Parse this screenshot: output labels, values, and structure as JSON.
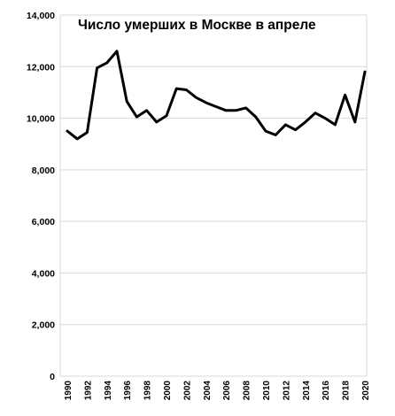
{
  "chart_data": {
    "type": "line",
    "title": "Число умерших в Москве в апреле",
    "xlabel": "",
    "ylabel": "",
    "ylim": [
      0,
      14000
    ],
    "yticks": [
      0,
      2000,
      4000,
      6000,
      8000,
      10000,
      12000,
      14000
    ],
    "ytick_labels": [
      "0",
      "2,000",
      "4,000",
      "6,000",
      "8,000",
      "10,000",
      "12,000",
      "14,000"
    ],
    "xtick_labels": [
      "1990",
      "1992",
      "1994",
      "1996",
      "1998",
      "2000",
      "2002",
      "2004",
      "2006",
      "2008",
      "2010",
      "2012",
      "2014",
      "2016",
      "2018",
      "2020"
    ],
    "grid": true,
    "legend": false,
    "line_color": "#000000",
    "grid_color": "#d9d9d9",
    "x": [
      1990,
      1991,
      1992,
      1993,
      1994,
      1995,
      1996,
      1997,
      1998,
      1999,
      2000,
      2001,
      2002,
      2003,
      2004,
      2005,
      2006,
      2007,
      2008,
      2009,
      2010,
      2011,
      2012,
      2013,
      2014,
      2015,
      2016,
      2017,
      2018,
      2019,
      2020
    ],
    "values": [
      9500,
      9200,
      9450,
      11950,
      12150,
      12600,
      10650,
      10050,
      10300,
      9850,
      10100,
      11150,
      11100,
      10800,
      10600,
      10450,
      10300,
      10300,
      10400,
      10050,
      9500,
      9350,
      9750,
      9550,
      9850,
      10200,
      10000,
      9750,
      10900,
      9850,
      11800
    ]
  }
}
